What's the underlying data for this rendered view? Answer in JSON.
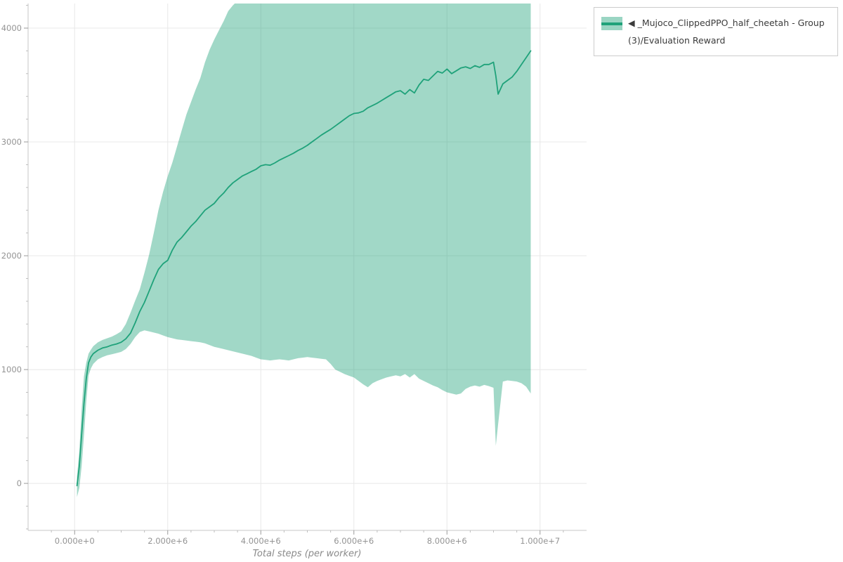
{
  "legend": {
    "label": "◀ _Mujoco_ClippedPPO_half_cheetah - Group(3)/Evaluation Reward",
    "swatch": "band-with-line-swatch"
  },
  "colors": {
    "line": "#1fa27a",
    "band": "#1fa27a",
    "band_opacity": 0.42,
    "grid": "#e8e8e8",
    "axis": "#c7c7c7"
  },
  "chart_data": {
    "type": "line",
    "title": "",
    "xlabel": "Total steps (per worker)",
    "ylabel": "",
    "grid": true,
    "legend_position": "top-right-outside",
    "xlim": [
      -1000000,
      11000000
    ],
    "ylim": [
      -413,
      4216
    ],
    "x_ticks": [
      {
        "value": 0,
        "label": "0.000e+0"
      },
      {
        "value": 2000000,
        "label": "2.000e+6"
      },
      {
        "value": 4000000,
        "label": "4.000e+6"
      },
      {
        "value": 6000000,
        "label": "6.000e+6"
      },
      {
        "value": 8000000,
        "label": "8.000e+6"
      },
      {
        "value": 10000000,
        "label": "1.000e+7"
      }
    ],
    "y_ticks": [
      {
        "value": 0,
        "label": "0"
      },
      {
        "value": 1000,
        "label": "1000"
      },
      {
        "value": 2000,
        "label": "2000"
      },
      {
        "value": 3000,
        "label": "3000"
      },
      {
        "value": 4000,
        "label": "4000"
      }
    ],
    "series": [
      {
        "name": "_Mujoco_ClippedPPO_half_cheetah - Group(3)/Evaluation Reward",
        "x": [
          50000,
          100000,
          150000,
          200000,
          250000,
          300000,
          350000,
          400000,
          500000,
          600000,
          700000,
          800000,
          900000,
          1000000,
          1100000,
          1200000,
          1300000,
          1400000,
          1500000,
          1600000,
          1700000,
          1800000,
          1900000,
          2000000,
          2100000,
          2200000,
          2300000,
          2400000,
          2500000,
          2600000,
          2700000,
          2800000,
          2900000,
          3000000,
          3100000,
          3200000,
          3300000,
          3400000,
          3500000,
          3600000,
          3700000,
          3800000,
          3900000,
          4000000,
          4100000,
          4200000,
          4300000,
          4400000,
          4500000,
          4600000,
          4700000,
          4800000,
          4900000,
          5000000,
          5100000,
          5200000,
          5300000,
          5400000,
          5500000,
          5600000,
          5700000,
          5800000,
          5900000,
          6000000,
          6100000,
          6200000,
          6300000,
          6400000,
          6500000,
          6600000,
          6700000,
          6800000,
          6900000,
          7000000,
          7100000,
          7200000,
          7300000,
          7400000,
          7500000,
          7600000,
          7700000,
          7800000,
          7900000,
          8000000,
          8100000,
          8200000,
          8300000,
          8400000,
          8500000,
          8600000,
          8700000,
          8800000,
          8900000,
          9000000,
          9050000,
          9100000,
          9200000,
          9300000,
          9400000,
          9500000,
          9600000,
          9700000,
          9800000
        ],
        "mean": [
          -20,
          150,
          430,
          700,
          920,
          1060,
          1110,
          1140,
          1170,
          1190,
          1200,
          1215,
          1225,
          1240,
          1270,
          1320,
          1410,
          1510,
          1590,
          1690,
          1790,
          1880,
          1930,
          1960,
          2050,
          2120,
          2160,
          2210,
          2260,
          2300,
          2350,
          2400,
          2430,
          2460,
          2510,
          2550,
          2600,
          2640,
          2670,
          2700,
          2720,
          2740,
          2760,
          2790,
          2800,
          2795,
          2815,
          2840,
          2860,
          2880,
          2900,
          2925,
          2945,
          2970,
          3000,
          3030,
          3060,
          3085,
          3110,
          3140,
          3170,
          3200,
          3230,
          3250,
          3255,
          3270,
          3300,
          3320,
          3340,
          3365,
          3390,
          3415,
          3440,
          3450,
          3420,
          3460,
          3430,
          3500,
          3550,
          3540,
          3580,
          3620,
          3605,
          3640,
          3600,
          3625,
          3650,
          3660,
          3645,
          3670,
          3655,
          3680,
          3680,
          3700,
          3580,
          3420,
          3510,
          3540,
          3570,
          3620,
          3680,
          3740,
          3800
        ],
        "lower": [
          -120,
          -40,
          150,
          420,
          720,
          950,
          1010,
          1050,
          1090,
          1110,
          1125,
          1135,
          1145,
          1155,
          1180,
          1225,
          1285,
          1330,
          1345,
          1335,
          1325,
          1315,
          1300,
          1285,
          1275,
          1265,
          1260,
          1255,
          1250,
          1245,
          1240,
          1230,
          1215,
          1200,
          1190,
          1180,
          1170,
          1160,
          1150,
          1140,
          1130,
          1120,
          1105,
          1090,
          1085,
          1080,
          1085,
          1090,
          1085,
          1080,
          1090,
          1100,
          1105,
          1110,
          1105,
          1100,
          1095,
          1090,
          1050,
          1000,
          980,
          960,
          945,
          930,
          900,
          870,
          845,
          880,
          900,
          915,
          930,
          940,
          950,
          940,
          960,
          930,
          960,
          920,
          900,
          880,
          860,
          845,
          820,
          800,
          790,
          780,
          790,
          830,
          850,
          860,
          850,
          865,
          855,
          840,
          330,
          520,
          895,
          905,
          900,
          895,
          880,
          850,
          790
        ],
        "upper": [
          60,
          280,
          650,
          940,
          1060,
          1140,
          1175,
          1205,
          1240,
          1260,
          1275,
          1290,
          1310,
          1335,
          1400,
          1500,
          1605,
          1705,
          1850,
          2010,
          2200,
          2400,
          2560,
          2700,
          2820,
          2960,
          3100,
          3240,
          3350,
          3460,
          3560,
          3700,
          3810,
          3900,
          3980,
          4060,
          4150,
          4200,
          4240,
          4320,
          4400,
          4450,
          4450,
          4450,
          4450,
          4450,
          4450,
          4450,
          4450,
          4450,
          4450,
          4450,
          4450,
          4450,
          4450,
          4450,
          4450,
          4450,
          4450,
          4450,
          4450,
          4450,
          4450,
          4450,
          4450,
          4450,
          4450,
          4450,
          4450,
          4450,
          4450,
          4450,
          4450,
          4450,
          4450,
          4450,
          4450,
          4450,
          4450,
          4450,
          4450,
          4450,
          4450,
          4450,
          4450,
          4450,
          4450,
          4450,
          4450,
          4450,
          4450,
          4450,
          4450,
          4450,
          4450,
          4450,
          4450,
          4450,
          4450,
          4450,
          4450,
          4450,
          4450
        ]
      }
    ]
  }
}
